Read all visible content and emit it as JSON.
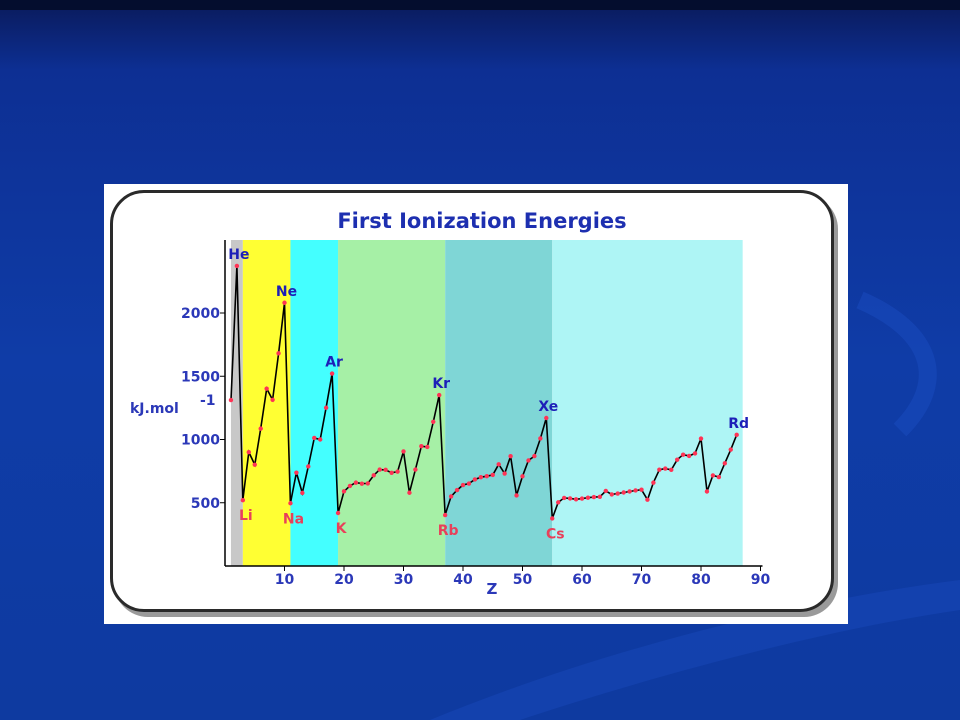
{
  "colors": {
    "background": "#0f3ca7",
    "noble_label": "#1d1fb8",
    "alkali_label": "#e8405a",
    "axis_label": "#2b38b8",
    "line": "#000000",
    "point": "#ff3355"
  },
  "chart_data": {
    "type": "line",
    "title": "First Ionization Energies",
    "xlabel": "Z",
    "ylabel": "kJ.mol",
    "ylabel_superscript": "-1",
    "xlim": [
      0,
      90
    ],
    "ylim": [
      0,
      2600
    ],
    "xticks": [
      10,
      20,
      30,
      40,
      50,
      60,
      70,
      80,
      90
    ],
    "yticks": [
      500,
      1000,
      1500,
      2000
    ],
    "grid": false,
    "bands": [
      {
        "x0": 1,
        "x1": 3,
        "color": "#c8c8c8"
      },
      {
        "x0": 3,
        "x1": 11,
        "color": "#ffff33"
      },
      {
        "x0": 11,
        "x1": 19,
        "color": "#44ffff"
      },
      {
        "x0": 19,
        "x1": 37,
        "color": "#a6f0a6"
      },
      {
        "x0": 37,
        "x1": 55,
        "color": "#7fd6d6"
      },
      {
        "x0": 55,
        "x1": 87,
        "color": "#aef5f5"
      }
    ],
    "series": [
      {
        "x": [
          1,
          2,
          3,
          4,
          5,
          6,
          7,
          8,
          9,
          10,
          11,
          12,
          13,
          14,
          15,
          16,
          17,
          18,
          19,
          20,
          21,
          22,
          23,
          24,
          25,
          26,
          27,
          28,
          29,
          30,
          31,
          32,
          33,
          34,
          35,
          36,
          37,
          38,
          39,
          40,
          41,
          42,
          43,
          44,
          45,
          46,
          47,
          48,
          49,
          50,
          51,
          52,
          53,
          54,
          55,
          56,
          57,
          58,
          59,
          60,
          61,
          62,
          63,
          64,
          65,
          66,
          67,
          68,
          69,
          70,
          71,
          72,
          73,
          74,
          75,
          76,
          77,
          78,
          79,
          80,
          81,
          82,
          83,
          84,
          85,
          86
        ],
        "y": [
          1312,
          2372,
          520,
          900,
          801,
          1086,
          1402,
          1314,
          1681,
          2081,
          496,
          738,
          578,
          787,
          1012,
          1000,
          1251,
          1521,
          419,
          590,
          633,
          659,
          651,
          653,
          717,
          762,
          760,
          737,
          746,
          906,
          579,
          762,
          947,
          941,
          1140,
          1351,
          403,
          550,
          600,
          640,
          652,
          684,
          702,
          710,
          720,
          804,
          731,
          868,
          558,
          709,
          834,
          869,
          1008,
          1170,
          376,
          503,
          538,
          534,
          527,
          533,
          540,
          545,
          547,
          593,
          566,
          573,
          581,
          589,
          597,
          603,
          524,
          659,
          761,
          770,
          760,
          840,
          880,
          870,
          890,
          1007,
          589,
          716,
          703,
          812,
          920,
          1037
        ]
      }
    ],
    "point_labels": [
      {
        "text": "He",
        "x": 2,
        "y": 2372,
        "group": "noble"
      },
      {
        "text": "Ne",
        "x": 10,
        "y": 2081,
        "group": "noble"
      },
      {
        "text": "Ar",
        "x": 18,
        "y": 1521,
        "group": "noble"
      },
      {
        "text": "Kr",
        "x": 36,
        "y": 1351,
        "group": "noble"
      },
      {
        "text": "Xe",
        "x": 54,
        "y": 1170,
        "group": "noble"
      },
      {
        "text": "Rd",
        "x": 86,
        "y": 1037,
        "group": "noble"
      },
      {
        "text": "Li",
        "x": 3,
        "y": 520,
        "group": "alkali"
      },
      {
        "text": "Na",
        "x": 11,
        "y": 496,
        "group": "alkali"
      },
      {
        "text": "K",
        "x": 19,
        "y": 419,
        "group": "alkali"
      },
      {
        "text": "Rb",
        "x": 37,
        "y": 403,
        "group": "alkali"
      },
      {
        "text": "Cs",
        "x": 55,
        "y": 376,
        "group": "alkali"
      }
    ]
  }
}
